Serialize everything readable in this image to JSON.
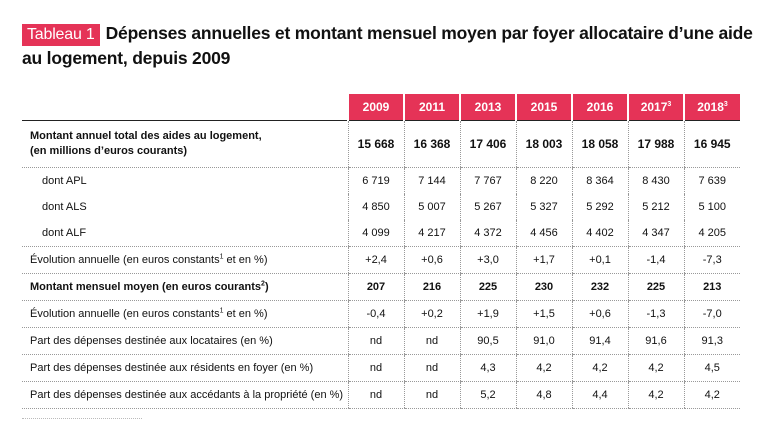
{
  "title": {
    "badge": "Tableau 1",
    "text": "Dépenses annuelles et montant mensuel moyen par foyer allocataire d’une aide au logement, depuis 2009"
  },
  "table": {
    "years": [
      {
        "label": "2009",
        "sup": ""
      },
      {
        "label": "2011",
        "sup": ""
      },
      {
        "label": "2013",
        "sup": ""
      },
      {
        "label": "2015",
        "sup": ""
      },
      {
        "label": "2016",
        "sup": ""
      },
      {
        "label": "2017",
        "sup": "3"
      },
      {
        "label": "2018",
        "sup": "3"
      }
    ],
    "rows": [
      {
        "label_line1": "Montant annuel total des aides au logement,",
        "label_line2": "(en millions d’euros courants)",
        "values": [
          "15 668",
          "16 368",
          "17 406",
          "18 003",
          "18 058",
          "17 988",
          "16 945"
        ]
      },
      {
        "label": "dont APL",
        "values": [
          "6 719",
          "7 144",
          "7 767",
          "8 220",
          "8 364",
          "8 430",
          "7 639"
        ]
      },
      {
        "label": "dont ALS",
        "values": [
          "4 850",
          "5 007",
          "5 267",
          "5 327",
          "5 292",
          "5 212",
          "5 100"
        ]
      },
      {
        "label": "dont ALF",
        "values": [
          "4 099",
          "4 217",
          "4 372",
          "4 456",
          "4 402",
          "4 347",
          "4 205"
        ]
      },
      {
        "label_pre": "Évolution annuelle (en euros constants",
        "label_sup": "1",
        "label_post": " et en %)",
        "values": [
          "+2,4",
          "+0,6",
          "+3,0",
          "+1,7",
          "+0,1",
          "-1,4",
          "-7,3"
        ]
      },
      {
        "label_pre": "Montant mensuel moyen (en euros courants",
        "label_sup": "2",
        "label_post": ")",
        "values": [
          "207",
          "216",
          "225",
          "230",
          "232",
          "225",
          "213"
        ]
      },
      {
        "label_pre": "Évolution annuelle (en euros constants",
        "label_sup": "1",
        "label_post": " et en %)",
        "values": [
          "-0,4",
          "+0,2",
          "+1,9",
          "+1,5",
          "+0,6",
          "-1,3",
          "-7,0"
        ]
      },
      {
        "label": "Part des dépenses destinée aux locataires (en %)",
        "values": [
          "nd",
          "nd",
          "90,5",
          "91,0",
          "91,4",
          "91,6",
          "91,3"
        ]
      },
      {
        "label": "Part des dépenses destinée aux résidents en foyer (en %)",
        "values": [
          "nd",
          "nd",
          "4,3",
          "4,2",
          "4,2",
          "4,2",
          "4,5"
        ]
      },
      {
        "label": "Part des dépenses destinée aux accédants à la propriété (en %)",
        "values": [
          "nd",
          "nd",
          "5,2",
          "4,8",
          "4,4",
          "4,2",
          "4,2"
        ]
      }
    ]
  }
}
